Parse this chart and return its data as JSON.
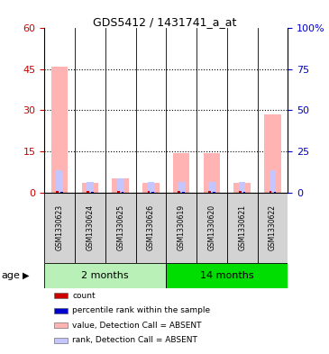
{
  "title": "GDS5412 / 1431741_a_at",
  "samples": [
    "GSM1330623",
    "GSM1330624",
    "GSM1330625",
    "GSM1330626",
    "GSM1330619",
    "GSM1330620",
    "GSM1330621",
    "GSM1330622"
  ],
  "groups": [
    {
      "label": "2 months",
      "indices": [
        0,
        1,
        2,
        3
      ],
      "color": "#90ee90"
    },
    {
      "label": "14 months",
      "indices": [
        4,
        5,
        6,
        7
      ],
      "color": "#00cc00"
    }
  ],
  "ylim_left": [
    0,
    60
  ],
  "ylim_right": [
    0,
    100
  ],
  "yticks_left": [
    0,
    15,
    30,
    45,
    60
  ],
  "yticks_right": [
    0,
    25,
    50,
    75,
    100
  ],
  "yticklabels_right": [
    "0",
    "25",
    "50",
    "75",
    "100%"
  ],
  "value_absent": [
    46.0,
    3.5,
    5.0,
    3.5,
    14.5,
    14.5,
    3.5,
    28.5
  ],
  "rank_absent": [
    13.5,
    6.5,
    8.5,
    6.5,
    6.5,
    6.5,
    6.5,
    13.5
  ],
  "count_val": [
    0.5,
    0.5,
    0.5,
    0.5,
    0.5,
    0.5,
    0.5,
    0.5
  ],
  "pct_rank": [
    0.5,
    0.5,
    0.5,
    0.5,
    0.5,
    0.5,
    0.5,
    0.5
  ],
  "color_count": "#cc0000",
  "color_pct_rank": "#0000cc",
  "color_value_absent": "#ffb3b3",
  "color_rank_absent": "#c5c5ff",
  "bg_color": "#ffffff",
  "plot_bg": "#ffffff",
  "age_label": "age",
  "legend_items": [
    {
      "label": "count",
      "color": "#cc0000"
    },
    {
      "label": "percentile rank within the sample",
      "color": "#0000cc"
    },
    {
      "label": "value, Detection Call = ABSENT",
      "color": "#ffb3b3"
    },
    {
      "label": "rank, Detection Call = ABSENT",
      "color": "#c5c5ff"
    }
  ],
  "left_tick_color": "#cc0000",
  "right_tick_color": "#0000cc",
  "sample_box_color": "#d3d3d3",
  "group_2m_color": "#b8f0b8",
  "group_14m_color": "#00dd00"
}
